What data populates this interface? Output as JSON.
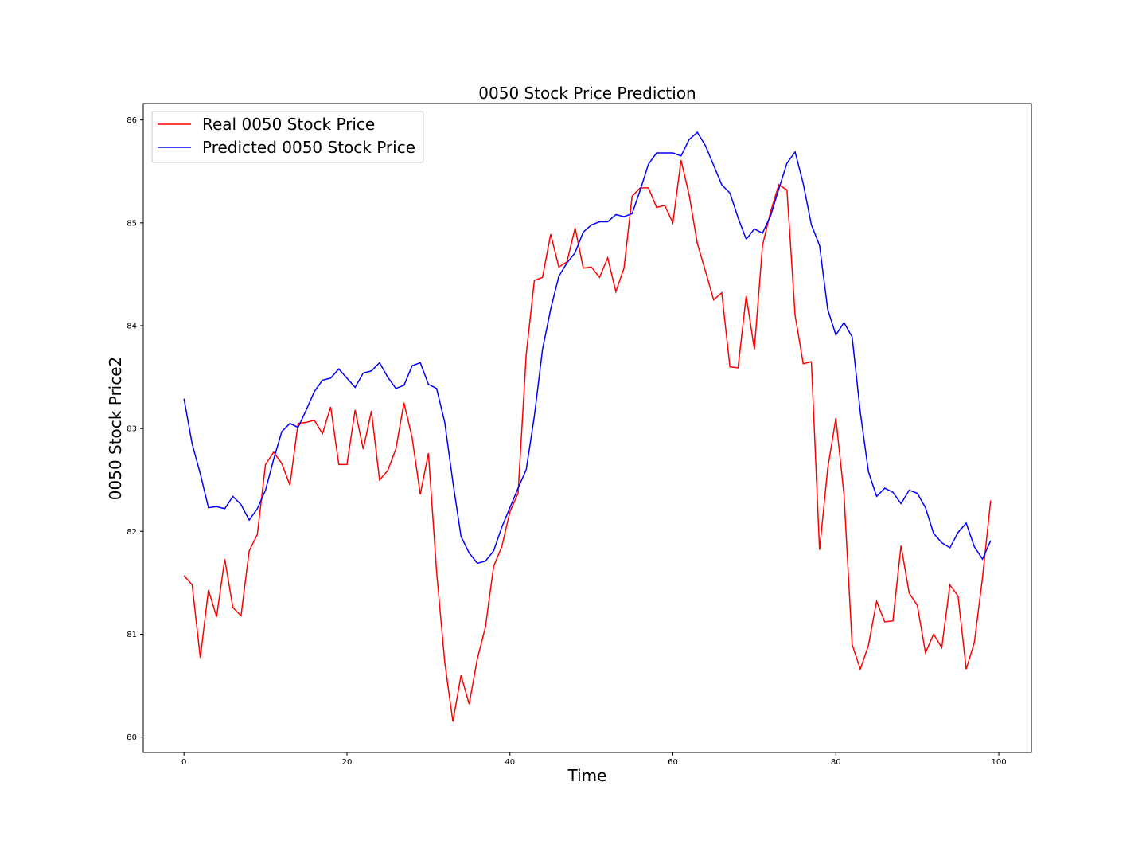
{
  "chart_data": {
    "type": "line",
    "title": "0050 Stock Price Prediction",
    "xlabel": "Time",
    "ylabel": "0050 Stock Price2",
    "xlim": [
      -5,
      104
    ],
    "ylim": [
      79.85,
      86.16
    ],
    "xticks": [
      0,
      20,
      40,
      60,
      80,
      100
    ],
    "yticks": [
      80,
      81,
      82,
      83,
      84,
      85,
      86
    ],
    "grid": false,
    "legend_position": "top-left",
    "x": [
      0,
      1,
      2,
      3,
      4,
      5,
      6,
      7,
      8,
      9,
      10,
      11,
      12,
      13,
      14,
      15,
      16,
      17,
      18,
      19,
      20,
      21,
      22,
      23,
      24,
      25,
      26,
      27,
      28,
      29,
      30,
      31,
      32,
      33,
      34,
      35,
      36,
      37,
      38,
      39,
      40,
      41,
      42,
      43,
      44,
      45,
      46,
      47,
      48,
      49,
      50,
      51,
      52,
      53,
      54,
      55,
      56,
      57,
      58,
      59,
      60,
      61,
      62,
      63,
      64,
      65,
      66,
      67,
      68,
      69,
      70,
      71,
      72,
      73,
      74,
      75,
      76,
      77,
      78,
      79,
      80,
      81,
      82,
      83,
      84,
      85,
      86,
      87,
      88,
      89,
      90,
      91,
      92,
      93,
      94,
      95,
      96,
      97,
      98,
      99
    ],
    "series": [
      {
        "name": "Real 0050 Stock Price",
        "color": "#ff0000",
        "values": [
          81.57,
          81.48,
          80.77,
          81.43,
          81.17,
          81.73,
          81.26,
          81.18,
          81.81,
          81.97,
          82.65,
          82.77,
          82.66,
          82.45,
          83.05,
          83.06,
          83.08,
          82.95,
          83.21,
          82.65,
          82.65,
          83.18,
          82.8,
          83.17,
          82.5,
          82.59,
          82.8,
          83.25,
          82.91,
          82.36,
          82.76,
          81.61,
          80.73,
          80.15,
          80.6,
          80.32,
          80.76,
          81.07,
          81.66,
          81.85,
          82.19,
          82.37,
          83.72,
          84.44,
          84.47,
          84.89,
          84.57,
          84.62,
          84.95,
          84.56,
          84.57,
          84.47,
          84.66,
          84.33,
          84.56,
          85.26,
          85.34,
          85.34,
          85.15,
          85.17,
          85.0,
          85.61,
          85.27,
          84.8,
          84.53,
          84.25,
          84.32,
          83.6,
          83.59,
          84.29,
          83.77,
          84.78,
          85.11,
          85.37,
          85.32,
          84.1,
          83.63,
          83.65,
          81.82,
          82.61,
          83.1,
          82.36,
          80.9,
          80.66,
          80.89,
          81.32,
          81.12,
          81.13,
          81.86,
          81.4,
          81.28,
          80.82,
          81.0,
          80.87,
          81.48,
          81.37,
          80.66,
          80.92,
          81.55,
          82.3
        ]
      },
      {
        "name": "Predicted 0050 Stock Price",
        "color": "#0000ff",
        "values": [
          83.29,
          82.85,
          82.56,
          82.23,
          82.24,
          82.22,
          82.34,
          82.26,
          82.11,
          82.22,
          82.4,
          82.7,
          82.97,
          83.05,
          83.01,
          83.18,
          83.36,
          83.47,
          83.49,
          83.58,
          83.49,
          83.4,
          83.54,
          83.56,
          83.64,
          83.5,
          83.39,
          83.42,
          83.61,
          83.64,
          83.43,
          83.39,
          83.06,
          82.48,
          81.95,
          81.79,
          81.69,
          81.71,
          81.81,
          82.04,
          82.23,
          82.42,
          82.6,
          83.12,
          83.77,
          84.16,
          84.48,
          84.61,
          84.71,
          84.91,
          84.98,
          85.01,
          85.01,
          85.08,
          85.06,
          85.09,
          85.32,
          85.57,
          85.68,
          85.68,
          85.68,
          85.65,
          85.81,
          85.88,
          85.75,
          85.56,
          85.37,
          85.29,
          85.05,
          84.84,
          84.94,
          84.9,
          85.07,
          85.33,
          85.58,
          85.69,
          85.38,
          84.98,
          84.78,
          84.16,
          83.91,
          84.03,
          83.89,
          83.16,
          82.58,
          82.34,
          82.42,
          82.38,
          82.27,
          82.4,
          82.37,
          82.23,
          81.98,
          81.89,
          81.84,
          81.99,
          82.08,
          81.85,
          81.73,
          81.91
        ]
      }
    ]
  }
}
